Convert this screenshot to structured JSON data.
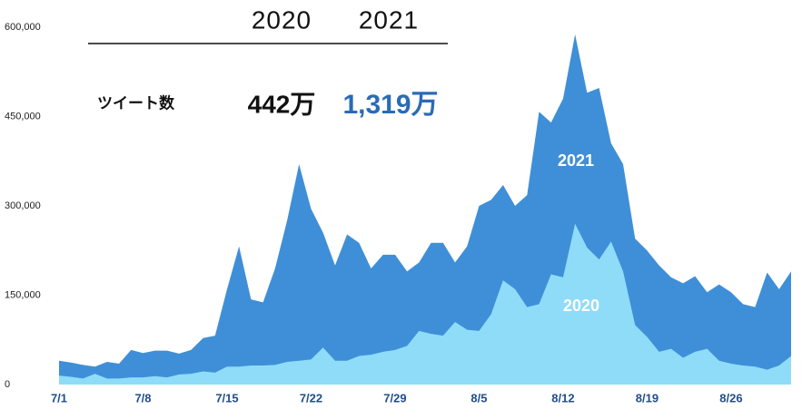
{
  "chart_data": {
    "type": "area",
    "summary": {
      "label": "ツイート数",
      "headers": [
        "2020",
        "2021"
      ],
      "totals": [
        "442万",
        "1,319万"
      ]
    },
    "categories": [
      "7/1",
      null,
      null,
      null,
      null,
      null,
      null,
      "7/8",
      null,
      null,
      null,
      null,
      null,
      null,
      "7/15",
      null,
      null,
      null,
      null,
      null,
      null,
      "7/22",
      null,
      null,
      null,
      null,
      null,
      null,
      "7/29",
      null,
      null,
      null,
      null,
      null,
      null,
      "8/5",
      null,
      null,
      null,
      null,
      null,
      null,
      "8/12",
      null,
      null,
      null,
      null,
      null,
      null,
      "8/19",
      null,
      null,
      null,
      null,
      null,
      null,
      "8/26",
      null,
      null,
      null,
      null,
      null
    ],
    "series": [
      {
        "name": "2021",
        "color": "#3f8fd8",
        "values": [
          40000,
          37000,
          33000,
          30000,
          38000,
          35000,
          58000,
          53000,
          57000,
          57000,
          52000,
          58000,
          78000,
          82000,
          160000,
          232000,
          143000,
          138000,
          195000,
          275000,
          370000,
          295000,
          255000,
          200000,
          252000,
          238000,
          195000,
          218000,
          218000,
          190000,
          205000,
          238000,
          238000,
          205000,
          232000,
          300000,
          310000,
          335000,
          300000,
          318000,
          458000,
          440000,
          480000,
          588000,
          490000,
          498000,
          405000,
          370000,
          245000,
          225000,
          200000,
          180000,
          170000,
          182000,
          155000,
          168000,
          155000,
          135000,
          130000,
          188000,
          160000,
          190000
        ]
      },
      {
        "name": "2020",
        "color": "#8fdcf8",
        "values": [
          15000,
          13000,
          10000,
          18000,
          10000,
          10000,
          12000,
          12000,
          14000,
          12000,
          17000,
          18000,
          22000,
          20000,
          30000,
          30000,
          32000,
          32000,
          33000,
          38000,
          40000,
          42000,
          62000,
          40000,
          40000,
          48000,
          50000,
          55000,
          58000,
          65000,
          90000,
          85000,
          82000,
          105000,
          92000,
          90000,
          118000,
          175000,
          160000,
          130000,
          135000,
          185000,
          180000,
          270000,
          230000,
          210000,
          240000,
          190000,
          100000,
          80000,
          55000,
          60000,
          45000,
          55000,
          60000,
          40000,
          35000,
          32000,
          30000,
          25000,
          32000,
          48000
        ]
      }
    ],
    "ylim": [
      0,
      600000
    ],
    "yticks": [
      0,
      {
        "value": 150000,
        "label": "150,000"
      },
      {
        "value": 300000,
        "label": "300,000"
      },
      {
        "value": 450000,
        "label": "450,000"
      },
      {
        "value": 600000,
        "label": "600,000"
      }
    ],
    "grid": false
  }
}
